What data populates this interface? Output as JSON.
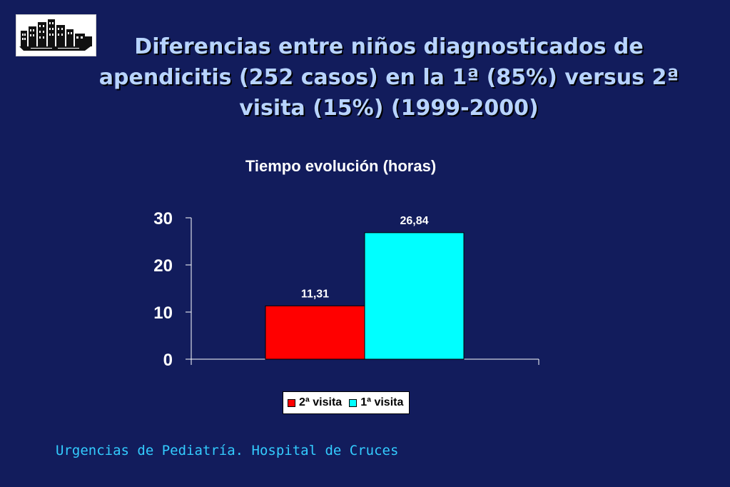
{
  "slide": {
    "title": "Diferencias entre niños diagnosticados de apendicitis (252 casos) en la 1ª (85%) versus 2ª visita (15%) (1999-2000)",
    "footer": "Urgencias de Pediatría. Hospital de Cruces",
    "logo_icon": "hospital-building-icon"
  },
  "colors": {
    "background": "#121c5c",
    "title": "#b8d4ff",
    "footer": "#33ccff",
    "series_2a": "#ff0000",
    "series_1a": "#00ffff"
  },
  "chart_data": {
    "type": "bar",
    "title": "Tiempo evolución (horas)",
    "xlabel": "",
    "ylabel": "",
    "ylim": [
      0,
      30
    ],
    "yticks": [
      "0",
      "10",
      "20",
      "30"
    ],
    "grid": false,
    "legend_position": "bottom",
    "categories": [
      ""
    ],
    "series": [
      {
        "name": "2ª visita",
        "values": [
          11.31
        ],
        "label": "11,31",
        "color": "#ff0000"
      },
      {
        "name": "1ª visita",
        "values": [
          26.84
        ],
        "label": "26,84",
        "color": "#00ffff"
      }
    ]
  }
}
